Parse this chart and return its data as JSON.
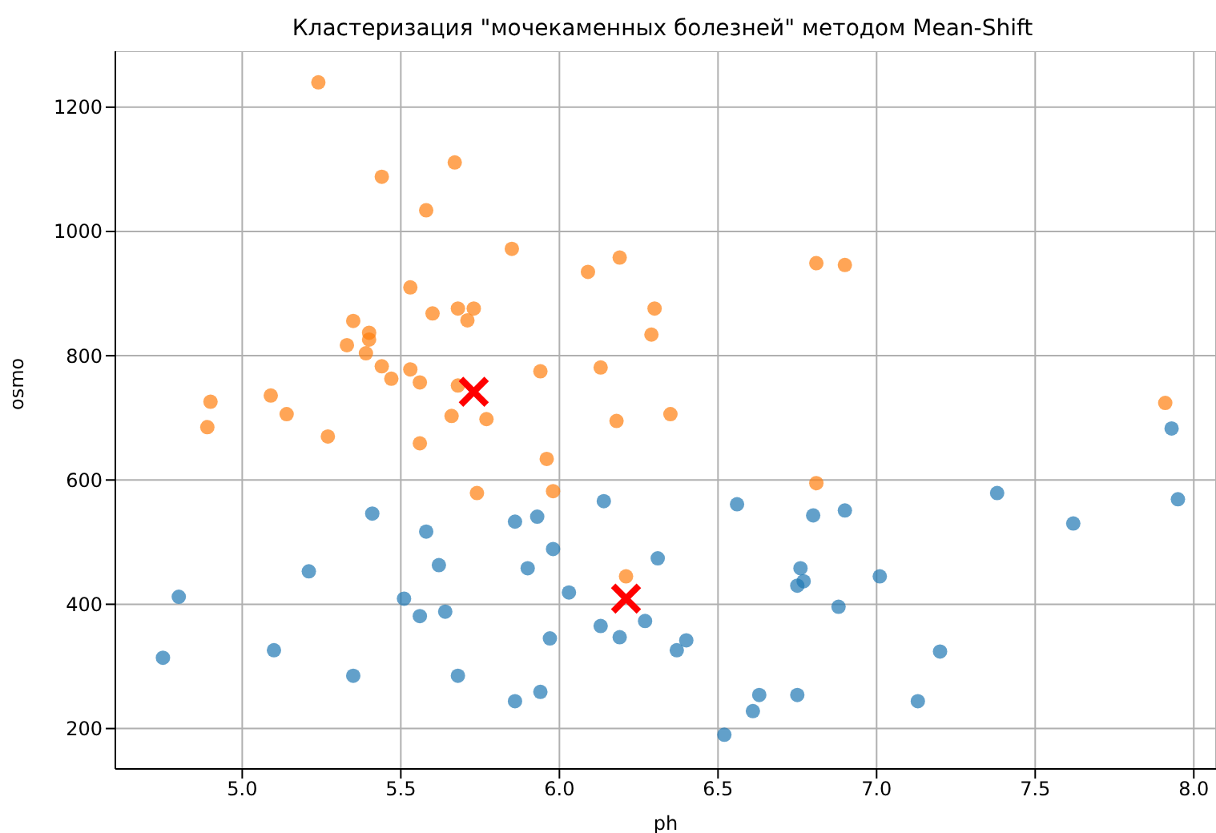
{
  "chart_data": {
    "type": "scatter",
    "title": "Кластеризация \"мочекаменных болезней\" методом Mean-Shift",
    "xlabel": "ph",
    "ylabel": "osmo",
    "xlim": [
      4.6,
      8.07
    ],
    "ylim": [
      135,
      1290
    ],
    "xticks": [
      {
        "value": 5,
        "label": "5.0"
      },
      {
        "value": 5.5,
        "label": "5.5"
      },
      {
        "value": 6,
        "label": "6.0"
      },
      {
        "value": 6.5,
        "label": "6.5"
      },
      {
        "value": 7,
        "label": "7.0"
      },
      {
        "value": 7.5,
        "label": "7.5"
      },
      {
        "value": 8,
        "label": "8.0"
      }
    ],
    "yticks": [
      200,
      400,
      600,
      800,
      1000,
      1200
    ],
    "grid": true,
    "marker": "circle",
    "series": [
      {
        "color": "#ff7f0e",
        "x": [
          5.24,
          5.44,
          5.67,
          5.58,
          5.85,
          6.09,
          6.19,
          6.81,
          6.9,
          5.53,
          5.6,
          5.68,
          5.73,
          5.71,
          6.3,
          6.29,
          5.35,
          5.4,
          5.4,
          5.33,
          5.39,
          5.44,
          5.47,
          5.53,
          5.56,
          5.68,
          5.94,
          6.13,
          4.9,
          5.09,
          5.14,
          4.89,
          5.27,
          5.56,
          5.66,
          5.77,
          6.18,
          6.35,
          7.91,
          5.96,
          5.98,
          5.74,
          6.81,
          6.21
        ],
        "values": [
          1240,
          1088,
          1111,
          1034,
          972,
          935,
          958,
          949,
          946,
          910,
          868,
          876,
          876,
          857,
          876,
          834,
          856,
          837,
          826,
          817,
          804,
          783,
          763,
          778,
          757,
          752,
          775,
          781,
          726,
          736,
          706,
          685,
          670,
          659,
          703,
          698,
          695,
          706,
          724,
          634,
          582,
          579,
          595,
          445
        ]
      },
      {
        "color": "#1f77b4",
        "x": [
          5.41,
          5.58,
          5.62,
          5.21,
          4.8,
          5.51,
          5.56,
          5.64,
          4.75,
          5.1,
          5.35,
          5.68,
          5.86,
          7.93,
          6.14,
          6.56,
          5.86,
          5.93,
          6.8,
          6.9,
          7.38,
          7.62,
          7.95,
          5.98,
          5.9,
          6.31,
          6.03,
          6.76,
          6.77,
          6.75,
          7.01,
          6.13,
          6.19,
          6.27,
          6.88,
          5.97,
          6.4,
          6.37,
          7.2,
          5.94,
          6.63,
          6.75,
          6.61,
          7.13,
          6.52
        ],
        "values": [
          546,
          517,
          463,
          453,
          412,
          409,
          381,
          388,
          314,
          326,
          285,
          285,
          244,
          683,
          566,
          561,
          533,
          541,
          543,
          551,
          579,
          530,
          569,
          489,
          458,
          474,
          419,
          458,
          437,
          430,
          445,
          365,
          347,
          373,
          396,
          345,
          342,
          326,
          324,
          259,
          254,
          254,
          228,
          244,
          190
        ]
      },
      {
        "color": "#ff0000",
        "marker": "cross",
        "x": [
          5.73,
          6.21
        ],
        "values": [
          742,
          409
        ]
      }
    ]
  }
}
